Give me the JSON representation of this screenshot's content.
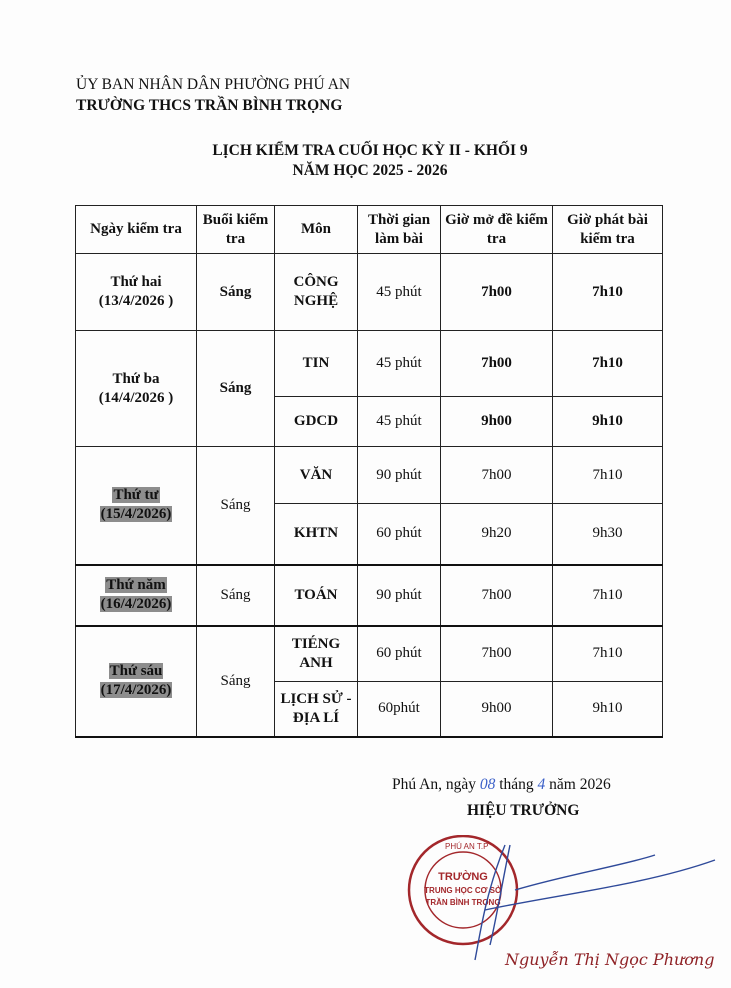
{
  "header": {
    "authority": "ỦY BAN NHÂN DÂN PHƯỜNG PHÚ AN",
    "school": "TRƯỜNG THCS TRẦN BÌNH TRỌNG"
  },
  "title": {
    "line1": "LỊCH KIỂM TRA CUỐI HỌC KỲ II - KHỐI 9",
    "line2": "NĂM HỌC 2025 - 2026"
  },
  "table": {
    "columns": [
      "Ngày kiểm tra",
      "Buổi kiểm tra",
      "Môn",
      "Thời gian làm bài",
      "Giờ mở đề kiểm tra",
      "Giờ phát bài kiểm tra"
    ],
    "days": [
      {
        "day": "Thứ hai",
        "date": "(13/4/2026 )",
        "session": "Sáng",
        "exams": [
          {
            "subject": "CÔNG NGHỆ",
            "duration": "45 phút",
            "open": "7h00",
            "distribute": "7h10"
          }
        ]
      },
      {
        "day": "Thứ ba",
        "date": "(14/4/2026 )",
        "session": "Sáng",
        "exams": [
          {
            "subject": "TIN",
            "duration": "45 phút",
            "open": "7h00",
            "distribute": "7h10"
          },
          {
            "subject": "GDCD",
            "duration": "45 phút",
            "open": "9h00",
            "distribute": "9h10"
          }
        ]
      },
      {
        "day": "Thứ tư",
        "date": "(15/4/2026)",
        "session": "Sáng",
        "exams": [
          {
            "subject": "VĂN",
            "duration": "90 phút",
            "open": "7h00",
            "distribute": "7h10"
          },
          {
            "subject": "KHTN",
            "duration": "60 phút",
            "open": "9h20",
            "distribute": "9h30"
          }
        ]
      },
      {
        "day": "Thứ năm",
        "date": "(16/4/2026)",
        "session": "Sáng",
        "exams": [
          {
            "subject": "TOÁN",
            "duration": "90 phút",
            "open": "7h00",
            "distribute": "7h10"
          }
        ]
      },
      {
        "day": "Thứ sáu",
        "date": "(17/4/2026)",
        "session": "Sáng",
        "exams": [
          {
            "subject": "TIÉNG ANH",
            "duration": "60 phút",
            "open": "7h00",
            "distribute": "7h10"
          },
          {
            "subject": "LỊCH SỬ - ĐỊA LÍ",
            "duration": "60phút",
            "open": "9h00",
            "distribute": "9h10"
          }
        ]
      }
    ]
  },
  "signature": {
    "place_prefix": "Phú An, ngày",
    "day": "08",
    "month_label": "tháng",
    "month": "4",
    "year_label": "năm 2026",
    "role": "HIỆU TRƯỞNG",
    "stamp_text": "PHƯỜNG PHÚ AN T.P HỒ CHÍ MINH TRƯỜNG TRUNG HỌC CƠ SỞ TRẦN BÌNH TRỌNG",
    "name": "Nguyễn Thị Ngọc Phương",
    "stamp_color": "#a3272b"
  }
}
